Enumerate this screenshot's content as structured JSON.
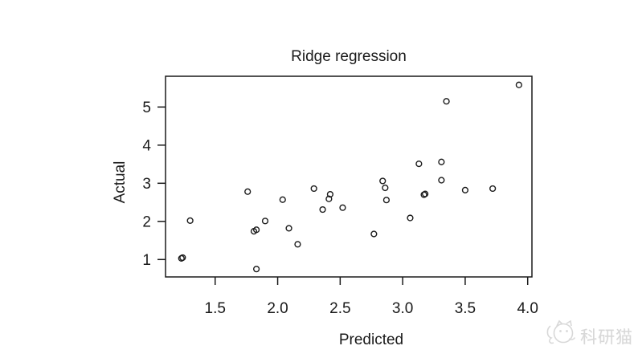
{
  "page": {
    "background": "#ffffff"
  },
  "chart_data": {
    "type": "scatter",
    "title": "Ridge regression",
    "xlabel": "Predicted",
    "ylabel": "Actual",
    "xlim": [
      1.103,
      4.034
    ],
    "ylim": [
      0.543,
      5.807
    ],
    "xticks": {
      "values": [
        1.5,
        2.0,
        2.5,
        3.0,
        3.5,
        4.0
      ],
      "labels": [
        "1.5",
        "2.0",
        "2.5",
        "3.0",
        "3.5",
        "4.0"
      ]
    },
    "yticks": {
      "values": [
        1,
        2,
        3,
        4,
        5
      ],
      "labels": [
        "1",
        "2",
        "3",
        "4",
        "5"
      ]
    },
    "grid": false,
    "legend": null,
    "frame_color": "#1a1a1a",
    "marker": {
      "shape": "open-circle",
      "radius_px": 3.4,
      "stroke": "#1a1a1a",
      "stroke_width": 1.4,
      "fill": "none"
    },
    "points": [
      [
        1.23,
        1.03
      ],
      [
        1.24,
        1.05
      ],
      [
        1.3,
        2.02
      ],
      [
        1.76,
        2.78
      ],
      [
        1.81,
        1.74
      ],
      [
        1.83,
        1.78
      ],
      [
        1.83,
        0.75
      ],
      [
        1.9,
        2.01
      ],
      [
        2.04,
        2.57
      ],
      [
        2.09,
        1.82
      ],
      [
        2.16,
        1.4
      ],
      [
        2.29,
        2.86
      ],
      [
        2.36,
        2.31
      ],
      [
        2.41,
        2.59
      ],
      [
        2.42,
        2.71
      ],
      [
        2.52,
        2.36
      ],
      [
        2.77,
        1.67
      ],
      [
        2.84,
        3.06
      ],
      [
        2.86,
        2.88
      ],
      [
        2.87,
        2.56
      ],
      [
        3.06,
        2.09
      ],
      [
        3.13,
        3.51
      ],
      [
        3.17,
        2.7
      ],
      [
        3.18,
        2.72
      ],
      [
        3.31,
        3.56
      ],
      [
        3.31,
        3.08
      ],
      [
        3.35,
        5.15
      ],
      [
        3.5,
        2.82
      ],
      [
        3.72,
        2.86
      ],
      [
        3.93,
        5.58
      ]
    ]
  },
  "watermark": {
    "logo": "cat-logo",
    "text": "科研猫",
    "color": "#d8d8d8"
  }
}
